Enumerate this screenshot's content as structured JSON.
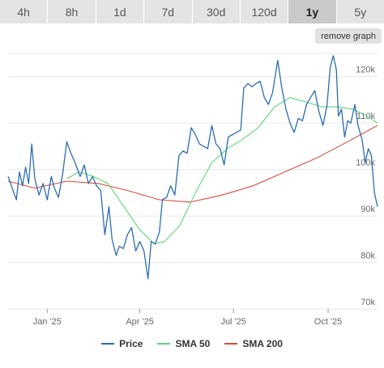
{
  "tabs": [
    {
      "label": "4h",
      "active": false
    },
    {
      "label": "8h",
      "active": false
    },
    {
      "label": "1d",
      "active": false
    },
    {
      "label": "7d",
      "active": false
    },
    {
      "label": "30d",
      "active": false
    },
    {
      "label": "120d",
      "active": false
    },
    {
      "label": "1y",
      "active": true
    },
    {
      "label": "5y",
      "active": false
    }
  ],
  "remove_graph_label": "remove graph",
  "colors": {
    "price": "#2b6cb0",
    "sma50": "#5fd47a",
    "sma200": "#d94b3a",
    "grid": "#e6e6e6",
    "tab_active": "#c9c9c9"
  },
  "chart_data": {
    "type": "line",
    "x_start": "2024-11-24",
    "x_end": "2025-11-18",
    "ylim": [
      70000,
      125000
    ],
    "y_ticks": [
      {
        "value": 70000,
        "label": "70k"
      },
      {
        "value": 80000,
        "label": "80k"
      },
      {
        "value": 90000,
        "label": "90k"
      },
      {
        "value": 100000,
        "label": "100k"
      },
      {
        "value": 110000,
        "label": "110k"
      },
      {
        "value": 120000,
        "label": "120k"
      }
    ],
    "x_ticks": [
      {
        "date": "2025-01-01",
        "label": "Jan '25"
      },
      {
        "date": "2025-04-01",
        "label": "Apr '25"
      },
      {
        "date": "2025-07-01",
        "label": "Jul '25"
      },
      {
        "date": "2025-10-01",
        "label": "Oct '25"
      }
    ],
    "grid": true,
    "legend": "bottom",
    "series": [
      {
        "name": "Price",
        "color": "#2b6cb0",
        "points": [
          [
            "2024-11-24",
            98500
          ],
          [
            "2024-11-28",
            96000
          ],
          [
            "2024-12-02",
            93500
          ],
          [
            "2024-12-05",
            99500
          ],
          [
            "2024-12-08",
            96500
          ],
          [
            "2024-12-11",
            100500
          ],
          [
            "2024-12-14",
            97000
          ],
          [
            "2024-12-17",
            105500
          ],
          [
            "2024-12-20",
            98000
          ],
          [
            "2024-12-24",
            94500
          ],
          [
            "2024-12-28",
            97000
          ],
          [
            "2025-01-01",
            93500
          ],
          [
            "2025-01-05",
            98500
          ],
          [
            "2025-01-08",
            96000
          ],
          [
            "2025-01-12",
            94000
          ],
          [
            "2025-01-16",
            99000
          ],
          [
            "2025-01-20",
            106000
          ],
          [
            "2025-01-24",
            103500
          ],
          [
            "2025-01-28",
            101500
          ],
          [
            "2025-02-02",
            98500
          ],
          [
            "2025-02-06",
            101000
          ],
          [
            "2025-02-10",
            97000
          ],
          [
            "2025-02-14",
            98500
          ],
          [
            "2025-02-18",
            96500
          ],
          [
            "2025-02-22",
            95500
          ],
          [
            "2025-02-26",
            86000
          ],
          [
            "2025-03-02",
            92000
          ],
          [
            "2025-03-05",
            85000
          ],
          [
            "2025-03-09",
            81500
          ],
          [
            "2025-03-12",
            83500
          ],
          [
            "2025-03-16",
            83000
          ],
          [
            "2025-03-20",
            86000
          ],
          [
            "2025-03-24",
            87500
          ],
          [
            "2025-03-28",
            82500
          ],
          [
            "2025-04-01",
            84500
          ],
          [
            "2025-04-05",
            82500
          ],
          [
            "2025-04-09",
            76500
          ],
          [
            "2025-04-12",
            84500
          ],
          [
            "2025-04-16",
            84000
          ],
          [
            "2025-04-20",
            86500
          ],
          [
            "2025-04-23",
            93500
          ],
          [
            "2025-04-27",
            94000
          ],
          [
            "2025-05-01",
            96500
          ],
          [
            "2025-05-05",
            94500
          ],
          [
            "2025-05-09",
            103000
          ],
          [
            "2025-05-13",
            104000
          ],
          [
            "2025-05-17",
            103500
          ],
          [
            "2025-05-21",
            109000
          ],
          [
            "2025-05-25",
            107500
          ],
          [
            "2025-05-29",
            105500
          ],
          [
            "2025-06-02",
            105000
          ],
          [
            "2025-06-06",
            104500
          ],
          [
            "2025-06-10",
            109500
          ],
          [
            "2025-06-14",
            105500
          ],
          [
            "2025-06-18",
            104500
          ],
          [
            "2025-06-22",
            101000
          ],
          [
            "2025-06-26",
            107000
          ],
          [
            "2025-06-30",
            107500
          ],
          [
            "2025-07-04",
            108000
          ],
          [
            "2025-07-08",
            108500
          ],
          [
            "2025-07-11",
            117500
          ],
          [
            "2025-07-15",
            118500
          ],
          [
            "2025-07-19",
            117800
          ],
          [
            "2025-07-23",
            118500
          ],
          [
            "2025-07-27",
            119000
          ],
          [
            "2025-07-31",
            115500
          ],
          [
            "2025-08-04",
            114000
          ],
          [
            "2025-08-08",
            116500
          ],
          [
            "2025-08-13",
            123500
          ],
          [
            "2025-08-17",
            117500
          ],
          [
            "2025-08-21",
            113000
          ],
          [
            "2025-08-25",
            110000
          ],
          [
            "2025-08-29",
            108000
          ],
          [
            "2025-09-02",
            111000
          ],
          [
            "2025-09-06",
            110500
          ],
          [
            "2025-09-10",
            114000
          ],
          [
            "2025-09-14",
            115500
          ],
          [
            "2025-09-18",
            117000
          ],
          [
            "2025-09-22",
            112500
          ],
          [
            "2025-09-26",
            109500
          ],
          [
            "2025-09-30",
            114000
          ],
          [
            "2025-10-03",
            122000
          ],
          [
            "2025-10-06",
            124500
          ],
          [
            "2025-10-09",
            121500
          ],
          [
            "2025-10-11",
            111500
          ],
          [
            "2025-10-14",
            113000
          ],
          [
            "2025-10-17",
            107000
          ],
          [
            "2025-10-20",
            110500
          ],
          [
            "2025-10-23",
            110000
          ],
          [
            "2025-10-27",
            114000
          ],
          [
            "2025-10-30",
            109500
          ],
          [
            "2025-11-03",
            106500
          ],
          [
            "2025-11-06",
            101500
          ],
          [
            "2025-11-09",
            104500
          ],
          [
            "2025-11-12",
            103000
          ],
          [
            "2025-11-15",
            95000
          ],
          [
            "2025-11-18",
            92000
          ]
        ]
      },
      {
        "name": "SMA 50",
        "color": "#5fd47a",
        "points": [
          [
            "2025-01-20",
            98000
          ],
          [
            "2025-02-01",
            99500
          ],
          [
            "2025-02-15",
            98500
          ],
          [
            "2025-03-01",
            97000
          ],
          [
            "2025-03-15",
            92500
          ],
          [
            "2025-04-01",
            87000
          ],
          [
            "2025-04-15",
            84000
          ],
          [
            "2025-04-25",
            84500
          ],
          [
            "2025-05-10",
            88000
          ],
          [
            "2025-05-25",
            95000
          ],
          [
            "2025-06-10",
            101500
          ],
          [
            "2025-06-25",
            104500
          ],
          [
            "2025-07-10",
            106500
          ],
          [
            "2025-07-25",
            109000
          ],
          [
            "2025-08-10",
            113500
          ],
          [
            "2025-08-25",
            115500
          ],
          [
            "2025-09-10",
            114500
          ],
          [
            "2025-09-25",
            113500
          ],
          [
            "2025-10-10",
            113500
          ],
          [
            "2025-10-25",
            113000
          ],
          [
            "2025-11-08",
            111500
          ],
          [
            "2025-11-18",
            110000
          ]
        ]
      },
      {
        "name": "SMA 200",
        "color": "#d94b3a",
        "points": [
          [
            "2024-11-24",
            97500
          ],
          [
            "2024-12-20",
            96000
          ],
          [
            "2025-01-20",
            97500
          ],
          [
            "2025-02-20",
            97000
          ],
          [
            "2025-03-20",
            95500
          ],
          [
            "2025-04-20",
            93500
          ],
          [
            "2025-05-20",
            93000
          ],
          [
            "2025-06-20",
            94500
          ],
          [
            "2025-07-20",
            96500
          ],
          [
            "2025-08-20",
            99500
          ],
          [
            "2025-09-20",
            102500
          ],
          [
            "2025-10-20",
            106000
          ],
          [
            "2025-11-18",
            109500
          ]
        ]
      }
    ]
  }
}
